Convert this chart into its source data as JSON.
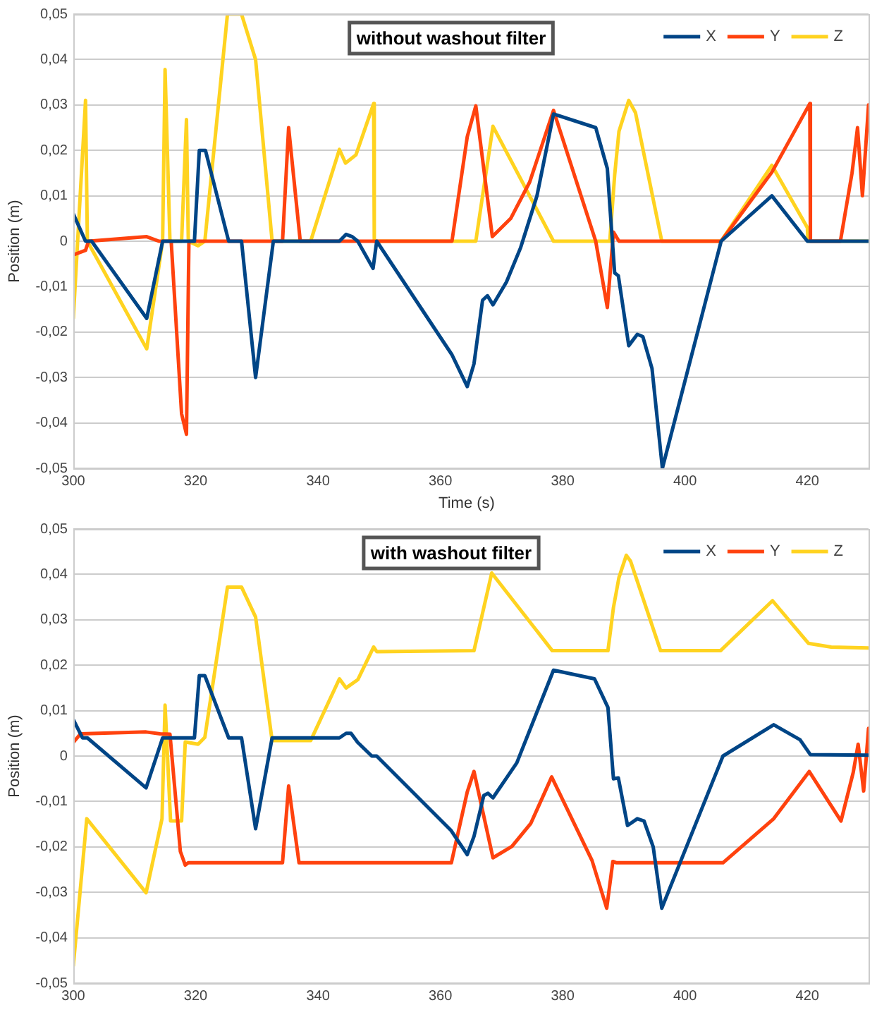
{
  "chart_data": [
    {
      "type": "line",
      "title": "without washout filter",
      "xlabel": "Time (s)",
      "ylabel": "Position (m)",
      "xlim": [
        300,
        430
      ],
      "xticks": [
        300,
        320,
        340,
        360,
        380,
        400,
        420
      ],
      "ylim": [
        -0.05,
        0.05
      ],
      "yticks": [
        {
          "value": -0.05,
          "label": "-0,05"
        },
        {
          "value": -0.04,
          "label": "-0,04"
        },
        {
          "value": -0.03,
          "label": "-0,03"
        },
        {
          "value": -0.02,
          "label": "-0,02"
        },
        {
          "value": -0.01,
          "label": "-0,01"
        },
        0,
        {
          "value": 0.01,
          "label": "0,01"
        },
        {
          "value": 0.02,
          "label": "0,02"
        },
        {
          "value": 0.03,
          "label": "0,03"
        },
        {
          "value": 0.04,
          "label": "0,04"
        },
        {
          "value": 0.05,
          "label": "0,05"
        }
      ],
      "grid": "y",
      "legend": "top right",
      "marker": "none",
      "series": [
        {
          "name": "X",
          "color": "#004586",
          "x": [
            300,
            302,
            303,
            312,
            314.6,
            319.8,
            320.6,
            321.6,
            325.4,
            327.5,
            329.8,
            332.7,
            343.5,
            344.6,
            345.6,
            346.5,
            349,
            349.6,
            361.9,
            364.4,
            365.5,
            366.9,
            367.7,
            368.6,
            370.8,
            373.1,
            375.8,
            378.5,
            385.4,
            387.3,
            387.7,
            388.5,
            389.1,
            390.8,
            392.2,
            393.1,
            394.6,
            396.3,
            405.9,
            414.2,
            420,
            430
          ],
          "values": [
            0.006,
            0,
            0,
            -0.017,
            0,
            0,
            0.02,
            0.02,
            0,
            0,
            -0.03,
            0,
            0,
            0.0015,
            0.001,
            0,
            -0.006,
            0,
            -0.025,
            -0.032,
            -0.027,
            -0.013,
            -0.012,
            -0.014,
            -0.009,
            -0.0015,
            0.01,
            0.028,
            0.025,
            0.016,
            0.008,
            -0.007,
            -0.0076,
            -0.023,
            -0.0205,
            -0.021,
            -0.028,
            -0.05,
            0,
            0.01,
            0,
            0
          ]
        },
        {
          "name": "Y",
          "color": "#ff420e",
          "x": [
            300,
            302,
            302.5,
            312,
            314,
            316,
            317.7,
            318.5,
            318.9,
            334.2,
            335.2,
            337.1,
            361.9,
            364.4,
            365.8,
            368.5,
            371.5,
            374.6,
            378.5,
            385.4,
            387.3,
            388.3,
            389.2,
            405.9,
            414.2,
            420.4,
            420.5,
            425.4,
            427.3,
            428.2,
            429,
            430
          ],
          "values": [
            -0.003,
            -0.002,
            0,
            0.001,
            0,
            0,
            -0.038,
            -0.0425,
            0,
            0,
            0.025,
            0,
            0,
            0.023,
            0.0298,
            0.001,
            0.005,
            0.013,
            0.0288,
            0,
            -0.0146,
            0.002,
            0,
            0,
            0.0152,
            0.0303,
            0,
            0,
            0.015,
            0.025,
            0.01,
            0.03
          ]
        },
        {
          "name": "Z",
          "color": "#ffd320",
          "x": [
            300,
            302,
            302.3,
            312,
            314.6,
            315,
            315.8,
            317.7,
            318.5,
            318.8,
            320.4,
            321.5,
            325.2,
            327.5,
            329.8,
            332.5,
            338.8,
            343.5,
            344.5,
            346.2,
            349.1,
            349.2,
            365.8,
            368.6,
            378.5,
            387.7,
            388.5,
            389.2,
            390.8,
            391.9,
            396.2,
            405.9,
            414.2,
            420,
            420.1,
            430
          ],
          "values": [
            -0.017,
            0.031,
            0,
            -0.0237,
            0,
            0.0378,
            0,
            0,
            0.0268,
            0,
            -0.001,
            0,
            0.05,
            0.05,
            0.04,
            0,
            0,
            0.0202,
            0.0172,
            0.019,
            0.0303,
            0,
            0,
            0.0253,
            0,
            0,
            0.0146,
            0.0242,
            0.031,
            0.0283,
            0,
            0,
            0.0167,
            0.003,
            0,
            0
          ]
        }
      ]
    },
    {
      "type": "line",
      "title": "with washout filter",
      "ylabel": "Position (m)",
      "xlim": [
        300,
        430
      ],
      "xticks": [
        300,
        320,
        340,
        360,
        380,
        400,
        420
      ],
      "ylim": [
        -0.05,
        0.05
      ],
      "yticks": [
        {
          "value": -0.05,
          "label": "-0,05"
        },
        {
          "value": -0.04,
          "label": "-0,04"
        },
        {
          "value": -0.03,
          "label": "-0,03"
        },
        {
          "value": -0.02,
          "label": "-0,02"
        },
        {
          "value": -0.01,
          "label": "-0,01"
        },
        0,
        {
          "value": 0.01,
          "label": "0,01"
        },
        {
          "value": 0.02,
          "label": "0,02"
        },
        {
          "value": 0.03,
          "label": "0,03"
        },
        {
          "value": 0.04,
          "label": "0,04"
        },
        {
          "value": 0.05,
          "label": "0,05"
        }
      ],
      "grid": "y",
      "legend": "top right",
      "marker": "none",
      "series": [
        {
          "name": "X",
          "color": "#004586",
          "x": [
            300,
            301.5,
            302.3,
            311.9,
            314.6,
            319.8,
            320.6,
            321.5,
            325.4,
            327.5,
            329.8,
            332.5,
            343.5,
            344.6,
            345.4,
            346.5,
            348.8,
            349.6,
            361.7,
            364.4,
            365.5,
            367.1,
            367.8,
            368.6,
            372.5,
            375.5,
            378.5,
            385.2,
            387.4,
            388.3,
            389.1,
            390.6,
            392.2,
            393.3,
            394.8,
            396.2,
            406.2,
            414.5,
            418.8,
            420.5,
            430
          ],
          "values": [
            0.008,
            0.004,
            0.004,
            -0.007,
            0.004,
            0.004,
            0.0177,
            0.0177,
            0.004,
            0.004,
            -0.016,
            0.004,
            0.004,
            0.005,
            0.005,
            0.003,
            0,
            0,
            -0.0163,
            -0.0217,
            -0.0177,
            -0.0087,
            -0.0082,
            -0.0092,
            -0.0015,
            0.0087,
            0.0189,
            0.017,
            0.0107,
            -0.005,
            -0.0048,
            -0.0153,
            -0.0138,
            -0.0143,
            -0.02,
            -0.0335,
            0,
            0.0069,
            0.0036,
            0.0003,
            0.0002
          ]
        },
        {
          "name": "Y",
          "color": "#ff420e",
          "x": [
            300,
            301.2,
            311.9,
            314.2,
            315.8,
            317.5,
            318.3,
            318.8,
            334.2,
            335.2,
            336.9,
            361.8,
            364.4,
            365.5,
            368.6,
            371.7,
            374.8,
            378.2,
            384.8,
            387.2,
            388.2,
            388.8,
            406.2,
            414.5,
            420.3,
            425.5,
            427.5,
            428.3,
            429.2,
            430
          ],
          "values": [
            0.003,
            0.0049,
            0.0053,
            0.0049,
            0.0048,
            -0.021,
            -0.024,
            -0.0235,
            -0.0235,
            -0.0066,
            -0.0235,
            -0.0235,
            -0.0079,
            -0.0034,
            -0.0224,
            -0.0199,
            -0.0148,
            -0.0046,
            -0.023,
            -0.0335,
            -0.0232,
            -0.0235,
            -0.0235,
            -0.0138,
            -0.0034,
            -0.0143,
            -0.0036,
            0.0026,
            -0.0077,
            0.0061
          ]
        },
        {
          "name": "Z",
          "color": "#ffd320",
          "x": [
            300,
            302.2,
            311.9,
            314.5,
            315,
            315.9,
            317.7,
            318.3,
            320.4,
            321.5,
            325.2,
            327.5,
            329.8,
            332.5,
            338.8,
            343.5,
            344.6,
            346.5,
            349.1,
            349.6,
            365.5,
            368.4,
            378.3,
            387.4,
            388.3,
            389.2,
            390.4,
            391.1,
            396,
            405.8,
            414.3,
            420.2,
            423.9,
            430
          ],
          "values": [
            -0.0462,
            -0.0138,
            -0.0301,
            -0.0138,
            0.0112,
            -0.0143,
            -0.0143,
            0.0031,
            0.0026,
            0.0041,
            0.0372,
            0.0372,
            0.0306,
            0.0034,
            0.0034,
            0.017,
            0.015,
            0.0168,
            0.024,
            0.023,
            0.0232,
            0.0403,
            0.0232,
            0.0232,
            0.0327,
            0.0393,
            0.0442,
            0.0429,
            0.0232,
            0.0232,
            0.0342,
            0.0248,
            0.024,
            0.0238
          ]
        }
      ]
    }
  ]
}
